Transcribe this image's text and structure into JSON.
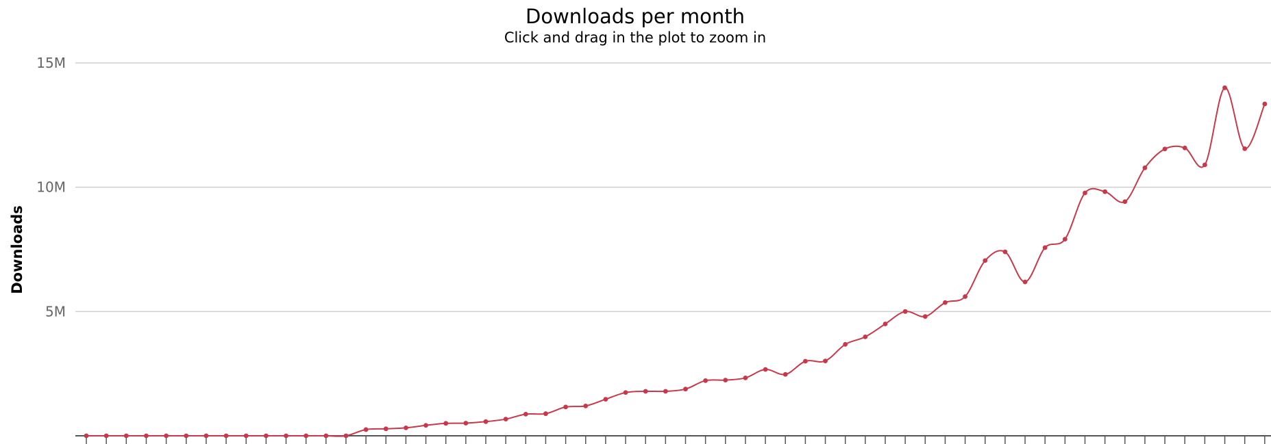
{
  "chart_data": {
    "type": "line",
    "title": "Downloads per month",
    "subtitle": "Click and drag in the plot to zoom in",
    "xlabel": "",
    "ylabel": "Downloads",
    "ylim": [
      0,
      15000000
    ],
    "yticks": [
      {
        "value": 5000000,
        "label": "5M"
      },
      {
        "value": 10000000,
        "label": "10M"
      },
      {
        "value": 15000000,
        "label": "15M"
      }
    ],
    "grid": true,
    "legend": "none",
    "series": [
      {
        "color": "#c8374a",
        "values": [
          0,
          0,
          0,
          0,
          0,
          0,
          0,
          0,
          0,
          0,
          0,
          0,
          0,
          0,
          250000,
          280000,
          320000,
          420000,
          500000,
          510000,
          570000,
          670000,
          870000,
          890000,
          1160000,
          1200000,
          1470000,
          1740000,
          1790000,
          1790000,
          1880000,
          2220000,
          2240000,
          2330000,
          2670000,
          2470000,
          3000000,
          3010000,
          3680000,
          3980000,
          4500000,
          5000000,
          4800000,
          5360000,
          5600000,
          7050000,
          7400000,
          6190000,
          7570000,
          7910000,
          9770000,
          9820000,
          9420000,
          10780000,
          11540000,
          11580000,
          10900000,
          14000000,
          11550000,
          13350000
        ]
      }
    ]
  }
}
